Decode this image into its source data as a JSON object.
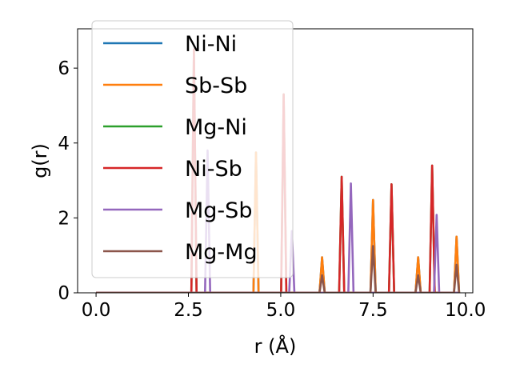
{
  "chart_data": {
    "type": "line",
    "xlabel": "r (Å)",
    "ylabel": "g(r)",
    "xlim": [
      -0.5,
      10.2
    ],
    "ylim": [
      0,
      7.05
    ],
    "xticks": [
      0.0,
      2.5,
      5.0,
      7.5,
      10.0
    ],
    "xtick_labels": [
      "0.0",
      "2.5",
      "5.0",
      "7.5",
      "10.0"
    ],
    "yticks": [
      0,
      2,
      4,
      6
    ],
    "ytick_labels": [
      "0",
      "2",
      "4",
      "6"
    ],
    "grid": false,
    "legend_position": "top-left",
    "peak_half_width": 0.07,
    "series": [
      {
        "name": "Ni-Ni",
        "color": "#1f77b4",
        "peaks": [
          [
            4.33,
            3.75
          ],
          [
            6.12,
            0.95
          ],
          [
            7.5,
            2.48
          ],
          [
            8.72,
            0.95
          ],
          [
            9.76,
            1.5
          ]
        ]
      },
      {
        "name": "Sb-Sb",
        "color": "#ff7f0e",
        "peaks": [
          [
            4.33,
            3.75
          ],
          [
            6.12,
            0.95
          ],
          [
            7.5,
            2.48
          ],
          [
            8.72,
            0.95
          ],
          [
            9.76,
            1.5
          ]
        ]
      },
      {
        "name": "Mg-Ni",
        "color": "#2ca02c",
        "peaks": [
          [
            2.65,
            6.5
          ],
          [
            5.08,
            5.3
          ],
          [
            6.65,
            3.1
          ],
          [
            8.0,
            2.9
          ],
          [
            9.1,
            3.4
          ]
        ]
      },
      {
        "name": "Ni-Sb",
        "color": "#d62728",
        "peaks": [
          [
            2.65,
            6.5
          ],
          [
            5.08,
            5.3
          ],
          [
            6.65,
            3.1
          ],
          [
            8.0,
            2.9
          ],
          [
            9.1,
            3.4
          ]
        ]
      },
      {
        "name": "Mg-Sb",
        "color": "#9467bd",
        "peaks": [
          [
            3.02,
            3.8
          ],
          [
            5.3,
            1.65
          ],
          [
            6.9,
            2.92
          ],
          [
            9.22,
            2.08
          ]
        ]
      },
      {
        "name": "Mg-Mg",
        "color": "#8c564b",
        "peaks": [
          [
            6.12,
            0.47
          ],
          [
            7.5,
            1.25
          ],
          [
            8.72,
            0.47
          ],
          [
            9.76,
            0.75
          ]
        ]
      }
    ]
  }
}
